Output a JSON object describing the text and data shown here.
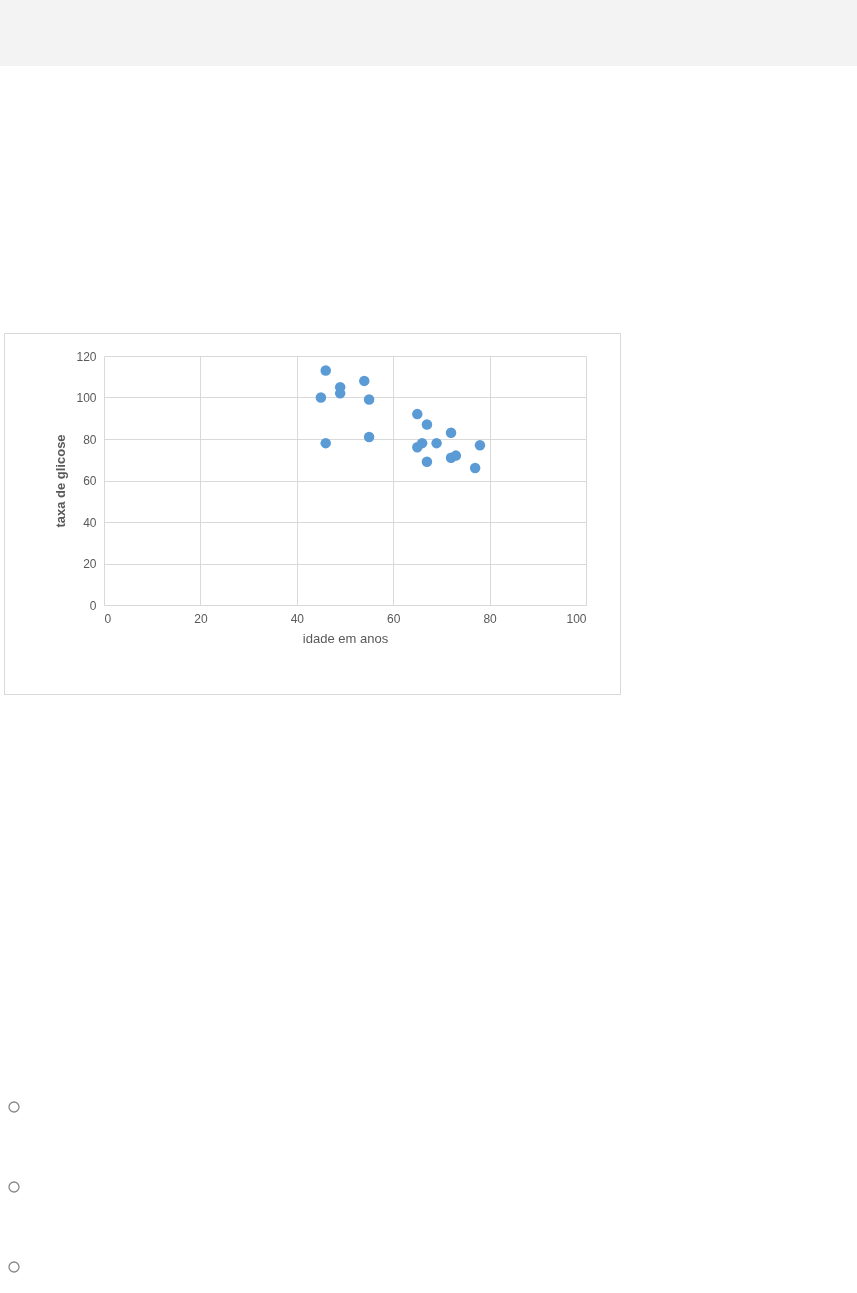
{
  "chart_data": {
    "type": "scatter",
    "xlabel": "idade em anos",
    "ylabel": "taxa de glicose",
    "x": [
      45,
      46,
      46,
      49,
      49,
      54,
      55,
      55,
      65,
      67,
      72,
      66,
      65,
      69,
      67,
      72,
      73,
      78,
      77
    ],
    "series": [
      {
        "color": "#5b9bd5",
        "values": [
          100,
          113,
          78,
          105,
          102,
          108,
          99,
          81,
          92,
          87,
          83,
          78,
          76,
          78,
          69,
          71,
          72,
          77,
          66
        ]
      }
    ],
    "xlim": [
      0,
      100
    ],
    "xticks": [
      0,
      20,
      40,
      60,
      80,
      100
    ],
    "ylim": [
      0,
      120
    ],
    "yticks": [
      0,
      20,
      40,
      60,
      80,
      100,
      120
    ],
    "grid": true,
    "marker": "circle",
    "legend": false
  }
}
